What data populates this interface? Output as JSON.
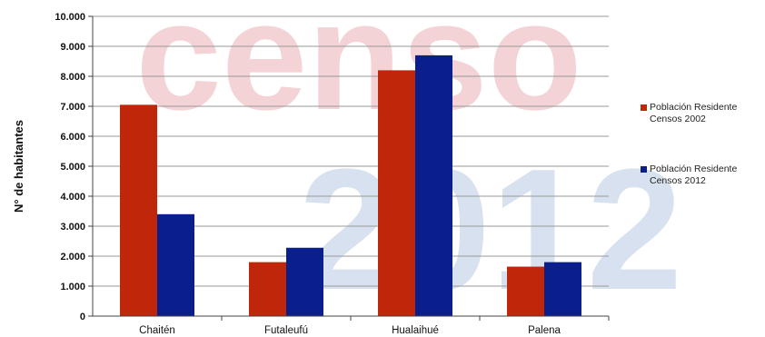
{
  "watermark": {
    "lines": [
      "censo",
      "2012"
    ],
    "colors": [
      "#f3d3d6",
      "#d8e1ef"
    ]
  },
  "chart_data": {
    "type": "bar",
    "categories": [
      "Chaitén",
      "Futaleufú",
      "Hualaihué",
      "Palena"
    ],
    "series": [
      {
        "name": "Población Residente Censos 2002",
        "values": [
          7050,
          1800,
          8200,
          1650
        ],
        "color": "#c0260a"
      },
      {
        "name": "Población Residente Censos 2012",
        "values": [
          3400,
          2280,
          8700,
          1800
        ],
        "color": "#0a1f8c"
      }
    ],
    "title": "",
    "xlabel": "",
    "ylabel": "N° de habitantes",
    "ylim": [
      0,
      10000
    ],
    "yticks": [
      0,
      1000,
      2000,
      3000,
      4000,
      5000,
      6000,
      7000,
      8000,
      9000,
      10000
    ],
    "ytick_labels": [
      "0",
      "1.000",
      "2.000",
      "3.000",
      "4.000",
      "5.000",
      "6.000",
      "7.000",
      "8.000",
      "9.000",
      "10.000"
    ],
    "grid": true,
    "legend_position": "right"
  }
}
